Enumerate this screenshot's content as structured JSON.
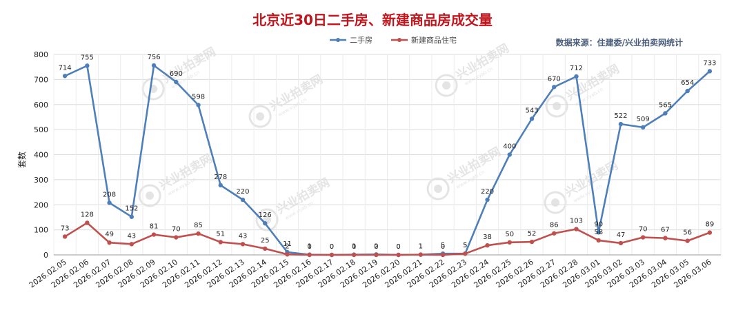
{
  "chart_data": {
    "type": "line",
    "title": "北京近30日二手房、新建商品房成交量",
    "source": "数据来源：住建委/兴业拍卖网统计",
    "ylabel": "套数",
    "xlabel": "",
    "ylim": [
      0,
      800
    ],
    "yticks": [
      0,
      100,
      200,
      300,
      400,
      500,
      600,
      700,
      800
    ],
    "grid": true,
    "legend_position": "top-center",
    "categories": [
      "2026.02.05",
      "2026.02.06",
      "2026.02.07",
      "2026.02.08",
      "2026.02.09",
      "2026.02.10",
      "2026.02.11",
      "2026.02.12",
      "2026.02.13",
      "2026.02.14",
      "2026.02.15",
      "2026.02.16",
      "2026.02.17",
      "2026.02.18",
      "2026.02.19",
      "2026.02.20",
      "2026.02.21",
      "2026.02.22",
      "2026.02.23",
      "2026.02.24",
      "2026.02.25",
      "2026.02.26",
      "2026.02.27",
      "2026.02.28",
      "2026.03.01",
      "2026.03.02",
      "2026.03.03",
      "2026.03.04",
      "2026.03.05",
      "2026.03.06"
    ],
    "series": [
      {
        "name": "二手房",
        "color": "#4e7fb8",
        "values": [
          714,
          755,
          208,
          152,
          756,
          690,
          598,
          278,
          220,
          126,
          11,
          1,
          0,
          1,
          2,
          0,
          1,
          5,
          5,
          220,
          400,
          543,
          670,
          712,
          90,
          522,
          509,
          565,
          654,
          733
        ]
      },
      {
        "name": "新建商品住宅",
        "color": "#c0504d",
        "values": [
          73,
          128,
          49,
          43,
          81,
          70,
          85,
          51,
          43,
          25,
          2,
          0,
          0,
          0,
          0,
          0,
          1,
          0,
          5,
          38,
          50,
          52,
          86,
          103,
          58,
          47,
          70,
          67,
          56,
          89
        ]
      }
    ]
  },
  "watermark": {
    "text": "兴业拍卖网",
    "sub": "www.xyab.cn",
    "color": "#cfcfcf"
  }
}
